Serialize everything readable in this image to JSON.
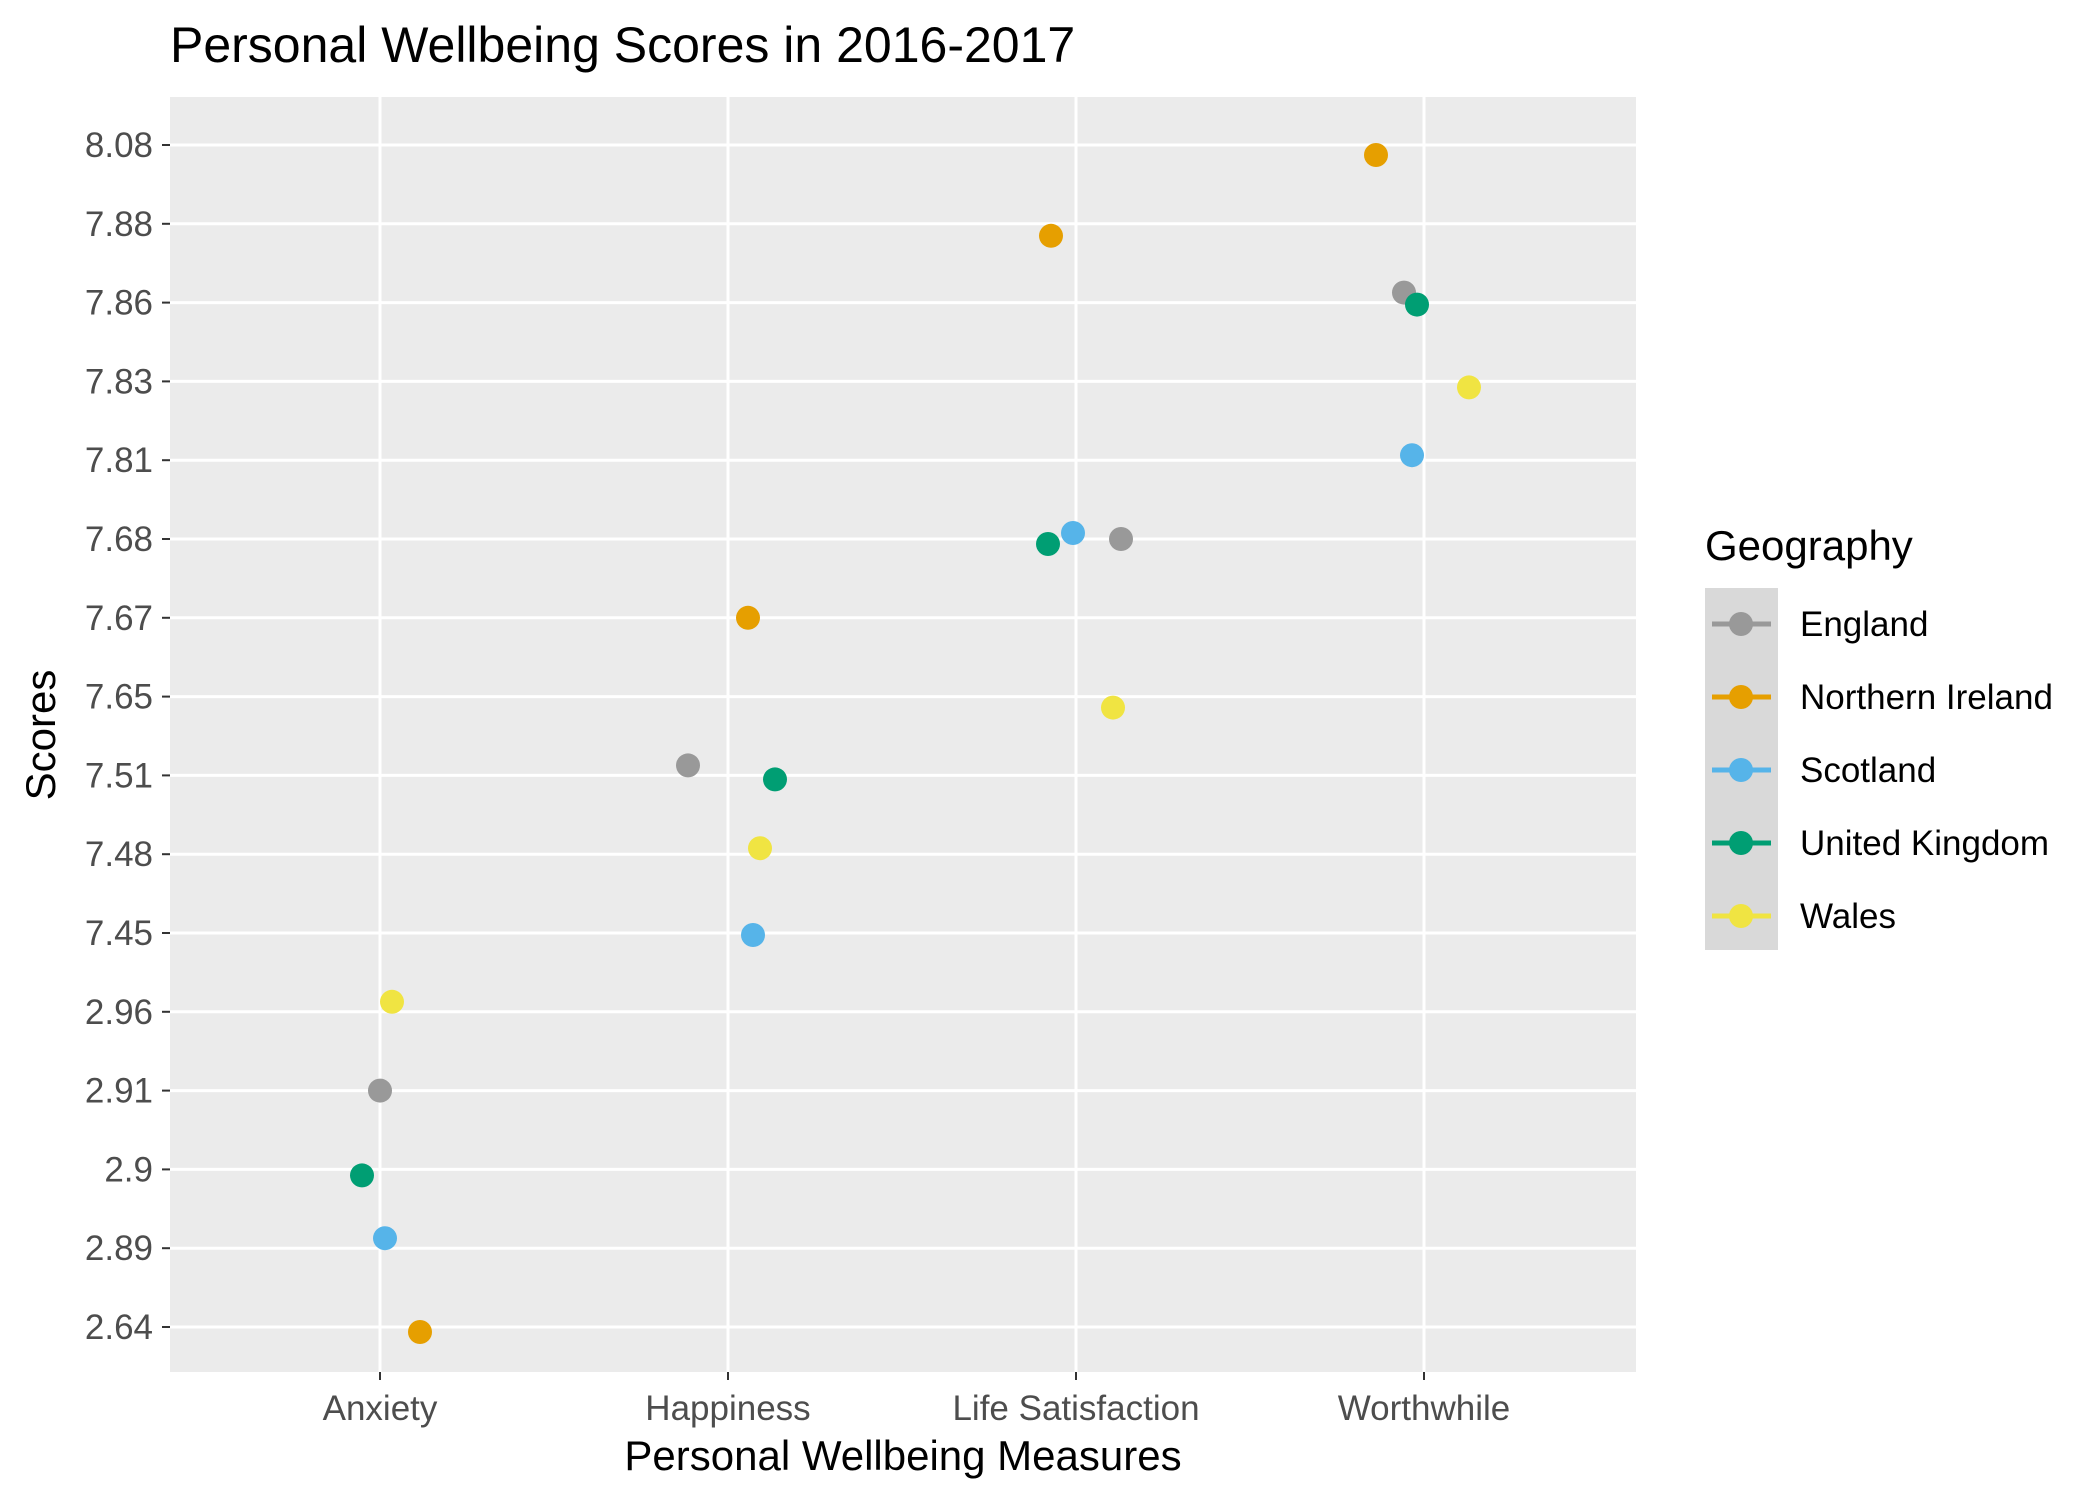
{
  "chart_data": {
    "type": "scatter",
    "title": "Personal Wellbeing Scores in 2016-2017",
    "xlabel": "Personal Wellbeing Measures",
    "ylabel": "Scores",
    "categories": [
      "Anxiety",
      "Happiness",
      "Life Satisfaction",
      "Worthwhile"
    ],
    "y_tick_labels": [
      "2.64",
      "2.89",
      "2.9",
      "2.91",
      "2.96",
      "7.45",
      "7.48",
      "7.51",
      "7.65",
      "7.67",
      "7.68",
      "7.81",
      "7.83",
      "7.86",
      "7.88",
      "8.08"
    ],
    "y_scale": "discrete (each distinct score value is its own evenly spaced level)",
    "grid": true,
    "legend": {
      "title": "Geography",
      "position": "right",
      "entries": [
        "England",
        "Northern Ireland",
        "Scotland",
        "United Kingdom",
        "Wales"
      ]
    },
    "colors": {
      "England": "#999999",
      "Northern Ireland": "#E69F00",
      "Scotland": "#56B4E9",
      "United Kingdom": "#009E73",
      "Wales": "#F0E442",
      "panel_background": "#EBEBEB",
      "grid": "#FFFFFF",
      "legend_key_background": "#D9D9D9"
    },
    "series": [
      {
        "name": "England",
        "values": [
          2.91,
          7.51,
          7.68,
          7.86
        ]
      },
      {
        "name": "Northern Ireland",
        "values": [
          2.64,
          7.67,
          7.88,
          8.08
        ]
      },
      {
        "name": "Scotland",
        "values": [
          2.89,
          7.45,
          7.68,
          7.81
        ]
      },
      {
        "name": "United Kingdom",
        "values": [
          2.9,
          7.51,
          7.68,
          7.86
        ]
      },
      {
        "name": "Wales",
        "values": [
          2.96,
          7.48,
          7.65,
          7.83
        ]
      }
    ]
  }
}
